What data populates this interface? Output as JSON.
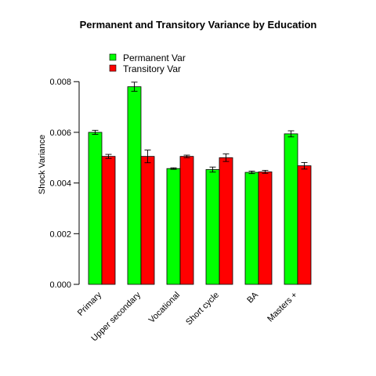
{
  "chart_data": {
    "type": "bar",
    "title": "Permanent and Transitory Variance by  Education",
    "xlabel": "",
    "ylabel": "Shock Variance",
    "ylim": [
      0,
      0.0081
    ],
    "yticks": [
      "0.000",
      "0.002",
      "0.004",
      "0.006",
      "0.008"
    ],
    "ytick_values": [
      0,
      0.002,
      0.004,
      0.006,
      0.008
    ],
    "categories": [
      "Primary",
      "Upper secondary",
      "Vocational",
      "Short cycle",
      "BA",
      "Masters +"
    ],
    "series": [
      {
        "name": "Permanent Var",
        "color": "#00ff00",
        "values": [
          0.006,
          0.0078,
          0.00457,
          0.00453,
          0.00442,
          0.00594
        ],
        "errors": [
          8e-05,
          0.00018,
          3e-05,
          0.0001,
          5e-05,
          0.00012
        ]
      },
      {
        "name": "Transitory Var",
        "color": "#ff0000",
        "values": [
          0.00505,
          0.00505,
          0.00505,
          0.005,
          0.00444,
          0.00468
        ],
        "errors": [
          8e-05,
          0.00025,
          5e-05,
          0.00015,
          6e-05,
          0.00013
        ]
      }
    ],
    "legend_position": "top-left",
    "grid": false
  }
}
